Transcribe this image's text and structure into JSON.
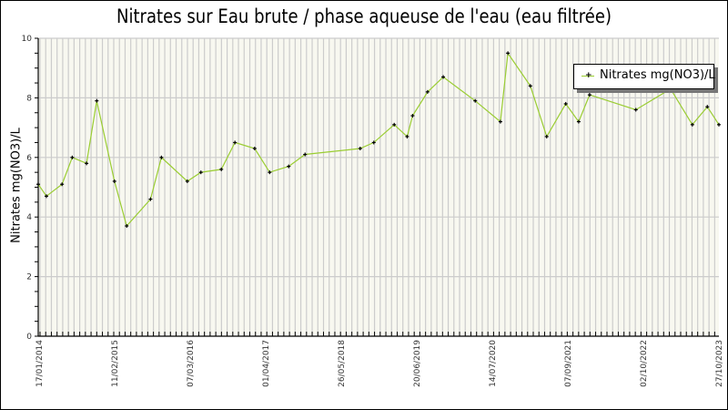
{
  "chart_data": {
    "type": "line",
    "title": "Nitrates sur Eau brute / phase aqueuse de l'eau (eau filtrée)",
    "xlabel": "",
    "ylabel": "Nitrates mg(NO3)/L",
    "ylim": [
      0,
      10
    ],
    "y_ticks": [
      0,
      2,
      4,
      6,
      8,
      10
    ],
    "y_minor_step": 0.5,
    "x_range": [
      "17/01/2014",
      "27/10/2023"
    ],
    "x_tick_labels": [
      "17/01/2014",
      "11/02/2015",
      "07/03/2016",
      "01/04/2017",
      "26/05/2018",
      "20/06/2019",
      "14/07/2020",
      "07/09/2021",
      "02/10/2022",
      "27/10/2023"
    ],
    "grid": true,
    "legend_position": "top-right",
    "series": [
      {
        "name": "Nitrates mg(NO3)/L",
        "color": "#9acd32",
        "marker": "cross",
        "x_frac": [
          0.0,
          0.012,
          0.035,
          0.05,
          0.071,
          0.086,
          0.112,
          0.13,
          0.165,
          0.181,
          0.219,
          0.239,
          0.269,
          0.289,
          0.318,
          0.34,
          0.368,
          0.392,
          0.473,
          0.493,
          0.523,
          0.542,
          0.55,
          0.572,
          0.595,
          0.642,
          0.679,
          0.69,
          0.723,
          0.747,
          0.775,
          0.794,
          0.81,
          0.878,
          0.929,
          0.961,
          0.983,
          1.0
        ],
        "values": [
          5.1,
          4.7,
          5.1,
          6.0,
          5.8,
          7.9,
          5.2,
          3.7,
          4.6,
          6.0,
          5.2,
          5.5,
          5.6,
          6.5,
          6.3,
          5.5,
          5.7,
          6.1,
          6.3,
          6.5,
          7.1,
          6.7,
          7.4,
          8.2,
          8.7,
          7.9,
          7.2,
          9.5,
          8.4,
          6.7,
          7.8,
          7.2,
          8.1,
          7.6,
          8.3,
          7.1,
          7.7,
          7.1
        ]
      }
    ]
  },
  "legend": {
    "label": "Nitrates mg(NO3)/L",
    "marker": "+"
  },
  "style": {
    "plot_bg": "#f8f8f0",
    "grid_color": "#cccccc",
    "line_color": "#9acd32",
    "marker_color": "#000000"
  }
}
